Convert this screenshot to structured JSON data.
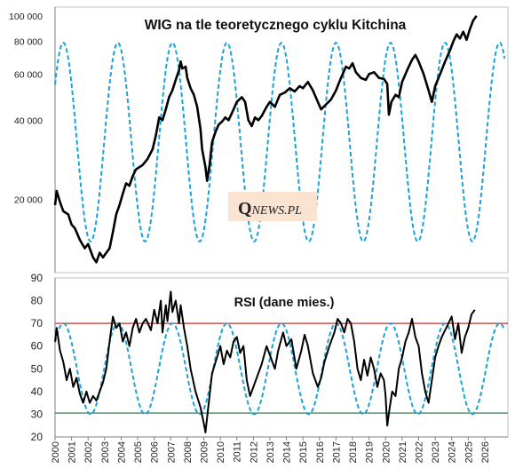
{
  "chart_data": [
    {
      "type": "line",
      "title": "WIG na tle teoretycznego cyklu Kitchina",
      "y_scale": "log",
      "ylim": [
        10500,
        108000
      ],
      "y_ticks": [
        "20 000",
        "40 000",
        "60 000",
        "80 000",
        "100 000"
      ],
      "y_tick_values": [
        20000,
        40000,
        60000,
        80000,
        100000
      ],
      "xlim": [
        2000,
        2027.4
      ],
      "watermark": {
        "q": "Q",
        "rest": "NEWS.PL"
      },
      "colors": {
        "wig": "#000000",
        "cycle": "#1aa3d9"
      },
      "series": [
        {
          "style": "solid",
          "points": [
            [
              2000.0,
              19000
            ],
            [
              2000.1,
              21500
            ],
            [
              2000.3,
              19500
            ],
            [
              2000.5,
              18000
            ],
            [
              2000.8,
              17500
            ],
            [
              2001.0,
              16000
            ],
            [
              2001.2,
              15500
            ],
            [
              2001.5,
              14000
            ],
            [
              2001.8,
              13000
            ],
            [
              2002.0,
              13500
            ],
            [
              2002.3,
              12000
            ],
            [
              2002.5,
              11500
            ],
            [
              2002.7,
              12500
            ],
            [
              2002.9,
              12000
            ],
            [
              2003.1,
              12500
            ],
            [
              2003.3,
              13000
            ],
            [
              2003.5,
              15000
            ],
            [
              2003.7,
              17500
            ],
            [
              2003.9,
              19000
            ],
            [
              2004.1,
              21000
            ],
            [
              2004.3,
              23000
            ],
            [
              2004.5,
              22500
            ],
            [
              2004.7,
              24500
            ],
            [
              2004.9,
              26000
            ],
            [
              2005.1,
              26500
            ],
            [
              2005.3,
              27000
            ],
            [
              2005.6,
              28500
            ],
            [
              2005.9,
              31000
            ],
            [
              2006.1,
              35000
            ],
            [
              2006.3,
              41000
            ],
            [
              2006.5,
              40000
            ],
            [
              2006.7,
              44000
            ],
            [
              2006.9,
              49000
            ],
            [
              2007.1,
              52000
            ],
            [
              2007.3,
              57000
            ],
            [
              2007.5,
              62000
            ],
            [
              2007.6,
              67000
            ],
            [
              2007.7,
              63000
            ],
            [
              2007.9,
              64000
            ],
            [
              2008.0,
              58000
            ],
            [
              2008.2,
              53000
            ],
            [
              2008.4,
              50000
            ],
            [
              2008.6,
              45000
            ],
            [
              2008.8,
              37000
            ],
            [
              2008.9,
              31000
            ],
            [
              2009.1,
              26500
            ],
            [
              2009.2,
              23500
            ],
            [
              2009.35,
              27000
            ],
            [
              2009.5,
              33000
            ],
            [
              2009.7,
              36000
            ],
            [
              2009.9,
              38500
            ],
            [
              2010.1,
              39500
            ],
            [
              2010.3,
              41000
            ],
            [
              2010.5,
              40000
            ],
            [
              2010.8,
              44000
            ],
            [
              2011.0,
              47000
            ],
            [
              2011.3,
              49000
            ],
            [
              2011.5,
              47000
            ],
            [
              2011.7,
              40000
            ],
            [
              2011.9,
              38000
            ],
            [
              2012.1,
              41000
            ],
            [
              2012.3,
              40000
            ],
            [
              2012.5,
              41500
            ],
            [
              2012.8,
              45000
            ],
            [
              2013.0,
              47000
            ],
            [
              2013.3,
              45000
            ],
            [
              2013.6,
              50000
            ],
            [
              2013.9,
              51000
            ],
            [
              2014.2,
              53000
            ],
            [
              2014.5,
              51500
            ],
            [
              2014.8,
              54000
            ],
            [
              2015.0,
              53000
            ],
            [
              2015.3,
              56000
            ],
            [
              2015.6,
              52000
            ],
            [
              2015.9,
              47000
            ],
            [
              2016.1,
              44000
            ],
            [
              2016.4,
              46000
            ],
            [
              2016.7,
              48000
            ],
            [
              2017.0,
              52000
            ],
            [
              2017.3,
              58000
            ],
            [
              2017.6,
              64000
            ],
            [
              2017.8,
              63000
            ],
            [
              2018.0,
              66000
            ],
            [
              2018.2,
              61000
            ],
            [
              2018.5,
              58000
            ],
            [
              2018.8,
              57000
            ],
            [
              2019.0,
              60000
            ],
            [
              2019.3,
              61000
            ],
            [
              2019.6,
              58000
            ],
            [
              2019.9,
              57500
            ],
            [
              2020.1,
              55000
            ],
            [
              2020.2,
              42000
            ],
            [
              2020.35,
              47000
            ],
            [
              2020.6,
              50000
            ],
            [
              2020.8,
              49000
            ],
            [
              2021.0,
              56000
            ],
            [
              2021.3,
              62000
            ],
            [
              2021.6,
              68000
            ],
            [
              2021.8,
              71000
            ],
            [
              2022.0,
              67000
            ],
            [
              2022.3,
              60000
            ],
            [
              2022.6,
              52000
            ],
            [
              2022.8,
              47000
            ],
            [
              2023.0,
              54000
            ],
            [
              2023.3,
              60000
            ],
            [
              2023.6,
              67000
            ],
            [
              2023.9,
              74000
            ],
            [
              2024.1,
              80000
            ],
            [
              2024.3,
              85000
            ],
            [
              2024.5,
              82000
            ],
            [
              2024.7,
              87000
            ],
            [
              2024.9,
              81000
            ],
            [
              2025.1,
              89000
            ],
            [
              2025.3,
              96000
            ],
            [
              2025.5,
              100000
            ]
          ]
        },
        {
          "style": "dashed",
          "cycle": {
            "period": 3.3,
            "peak_at": 2000.5,
            "min": 13800,
            "max": 79000,
            "x_end": 2027.2
          }
        }
      ]
    },
    {
      "type": "line",
      "title": "RSI (dane  mies.)",
      "ylim": [
        20,
        90
      ],
      "y_ticks": [
        "20",
        "30",
        "40",
        "50",
        "60",
        "70",
        "80",
        "90"
      ],
      "y_tick_values": [
        20,
        30,
        40,
        50,
        60,
        70,
        80,
        90
      ],
      "xlim": [
        2000,
        2027.4
      ],
      "x_ticks": [
        "2000",
        "2001",
        "2002",
        "2003",
        "2004",
        "2005",
        "2006",
        "2007",
        "2008",
        "2009",
        "2010",
        "2011",
        "2012",
        "2013",
        "2014",
        "2015",
        "2016",
        "2017",
        "2018",
        "2019",
        "2020",
        "2021",
        "2022",
        "2023",
        "2024",
        "2025",
        "2026"
      ],
      "reference_lines": [
        {
          "y": 70,
          "color": "#c0392b"
        },
        {
          "y": 30.5,
          "color": "#2e7d4f"
        }
      ],
      "colors": {
        "rsi": "#000000",
        "cycle": "#1aa3d9"
      },
      "series": [
        {
          "style": "solid",
          "points": [
            [
              2000.0,
              62
            ],
            [
              2000.1,
              68
            ],
            [
              2000.3,
              58
            ],
            [
              2000.5,
              53
            ],
            [
              2000.7,
              45
            ],
            [
              2000.9,
              50
            ],
            [
              2001.1,
              42
            ],
            [
              2001.3,
              46
            ],
            [
              2001.5,
              39
            ],
            [
              2001.7,
              35
            ],
            [
              2001.9,
              40
            ],
            [
              2002.1,
              35
            ],
            [
              2002.3,
              38
            ],
            [
              2002.5,
              36
            ],
            [
              2002.7,
              40
            ],
            [
              2002.9,
              44
            ],
            [
              2003.1,
              50
            ],
            [
              2003.3,
              62
            ],
            [
              2003.5,
              73
            ],
            [
              2003.7,
              68
            ],
            [
              2003.9,
              70
            ],
            [
              2004.1,
              62
            ],
            [
              2004.3,
              66
            ],
            [
              2004.5,
              60
            ],
            [
              2004.7,
              68
            ],
            [
              2004.9,
              72
            ],
            [
              2005.1,
              66
            ],
            [
              2005.3,
              70
            ],
            [
              2005.5,
              72
            ],
            [
              2005.8,
              67
            ],
            [
              2006.0,
              76
            ],
            [
              2006.2,
              70
            ],
            [
              2006.4,
              80
            ],
            [
              2006.5,
              66
            ],
            [
              2006.7,
              78
            ],
            [
              2006.8,
              71
            ],
            [
              2007.0,
              84
            ],
            [
              2007.1,
              75
            ],
            [
              2007.3,
              80
            ],
            [
              2007.5,
              70
            ],
            [
              2007.6,
              78
            ],
            [
              2007.8,
              68
            ],
            [
              2008.0,
              60
            ],
            [
              2008.2,
              50
            ],
            [
              2008.5,
              40
            ],
            [
              2008.8,
              33
            ],
            [
              2009.0,
              26
            ],
            [
              2009.1,
              22
            ],
            [
              2009.3,
              35
            ],
            [
              2009.5,
              48
            ],
            [
              2009.8,
              55
            ],
            [
              2010.0,
              60
            ],
            [
              2010.2,
              52
            ],
            [
              2010.4,
              58
            ],
            [
              2010.6,
              55
            ],
            [
              2010.8,
              62
            ],
            [
              2011.0,
              64
            ],
            [
              2011.2,
              57
            ],
            [
              2011.4,
              60
            ],
            [
              2011.6,
              45
            ],
            [
              2011.8,
              38
            ],
            [
              2012.0,
              42
            ],
            [
              2012.3,
              48
            ],
            [
              2012.5,
              52
            ],
            [
              2012.8,
              60
            ],
            [
              2013.0,
              56
            ],
            [
              2013.3,
              50
            ],
            [
              2013.5,
              58
            ],
            [
              2013.8,
              66
            ],
            [
              2014.0,
              60
            ],
            [
              2014.3,
              63
            ],
            [
              2014.6,
              50
            ],
            [
              2014.9,
              58
            ],
            [
              2015.1,
              65
            ],
            [
              2015.3,
              60
            ],
            [
              2015.6,
              48
            ],
            [
              2015.9,
              42
            ],
            [
              2016.1,
              46
            ],
            [
              2016.3,
              53
            ],
            [
              2016.6,
              60
            ],
            [
              2016.9,
              66
            ],
            [
              2017.1,
              72
            ],
            [
              2017.3,
              70
            ],
            [
              2017.5,
              66
            ],
            [
              2017.7,
              72
            ],
            [
              2017.9,
              70
            ],
            [
              2018.1,
              62
            ],
            [
              2018.3,
              50
            ],
            [
              2018.5,
              45
            ],
            [
              2018.7,
              54
            ],
            [
              2018.9,
              47
            ],
            [
              2019.1,
              55
            ],
            [
              2019.3,
              50
            ],
            [
              2019.5,
              42
            ],
            [
              2019.7,
              48
            ],
            [
              2019.9,
              45
            ],
            [
              2020.0,
              38
            ],
            [
              2020.1,
              25
            ],
            [
              2020.25,
              33
            ],
            [
              2020.4,
              40
            ],
            [
              2020.6,
              38
            ],
            [
              2020.8,
              50
            ],
            [
              2021.0,
              55
            ],
            [
              2021.2,
              62
            ],
            [
              2021.4,
              66
            ],
            [
              2021.6,
              72
            ],
            [
              2021.8,
              64
            ],
            [
              2022.0,
              60
            ],
            [
              2022.2,
              48
            ],
            [
              2022.4,
              40
            ],
            [
              2022.6,
              35
            ],
            [
              2022.8,
              45
            ],
            [
              2023.0,
              55
            ],
            [
              2023.2,
              60
            ],
            [
              2023.4,
              64
            ],
            [
              2023.6,
              67
            ],
            [
              2023.8,
              70
            ],
            [
              2024.0,
              73
            ],
            [
              2024.2,
              63
            ],
            [
              2024.4,
              70
            ],
            [
              2024.6,
              57
            ],
            [
              2024.8,
              64
            ],
            [
              2025.0,
              68
            ],
            [
              2025.2,
              74
            ],
            [
              2025.4,
              76
            ]
          ]
        },
        {
          "style": "dashed",
          "cycle": {
            "period": 3.3,
            "peak_at": 2000.5,
            "min": 30,
            "max": 70,
            "x_end": 2027.2
          }
        }
      ]
    }
  ]
}
